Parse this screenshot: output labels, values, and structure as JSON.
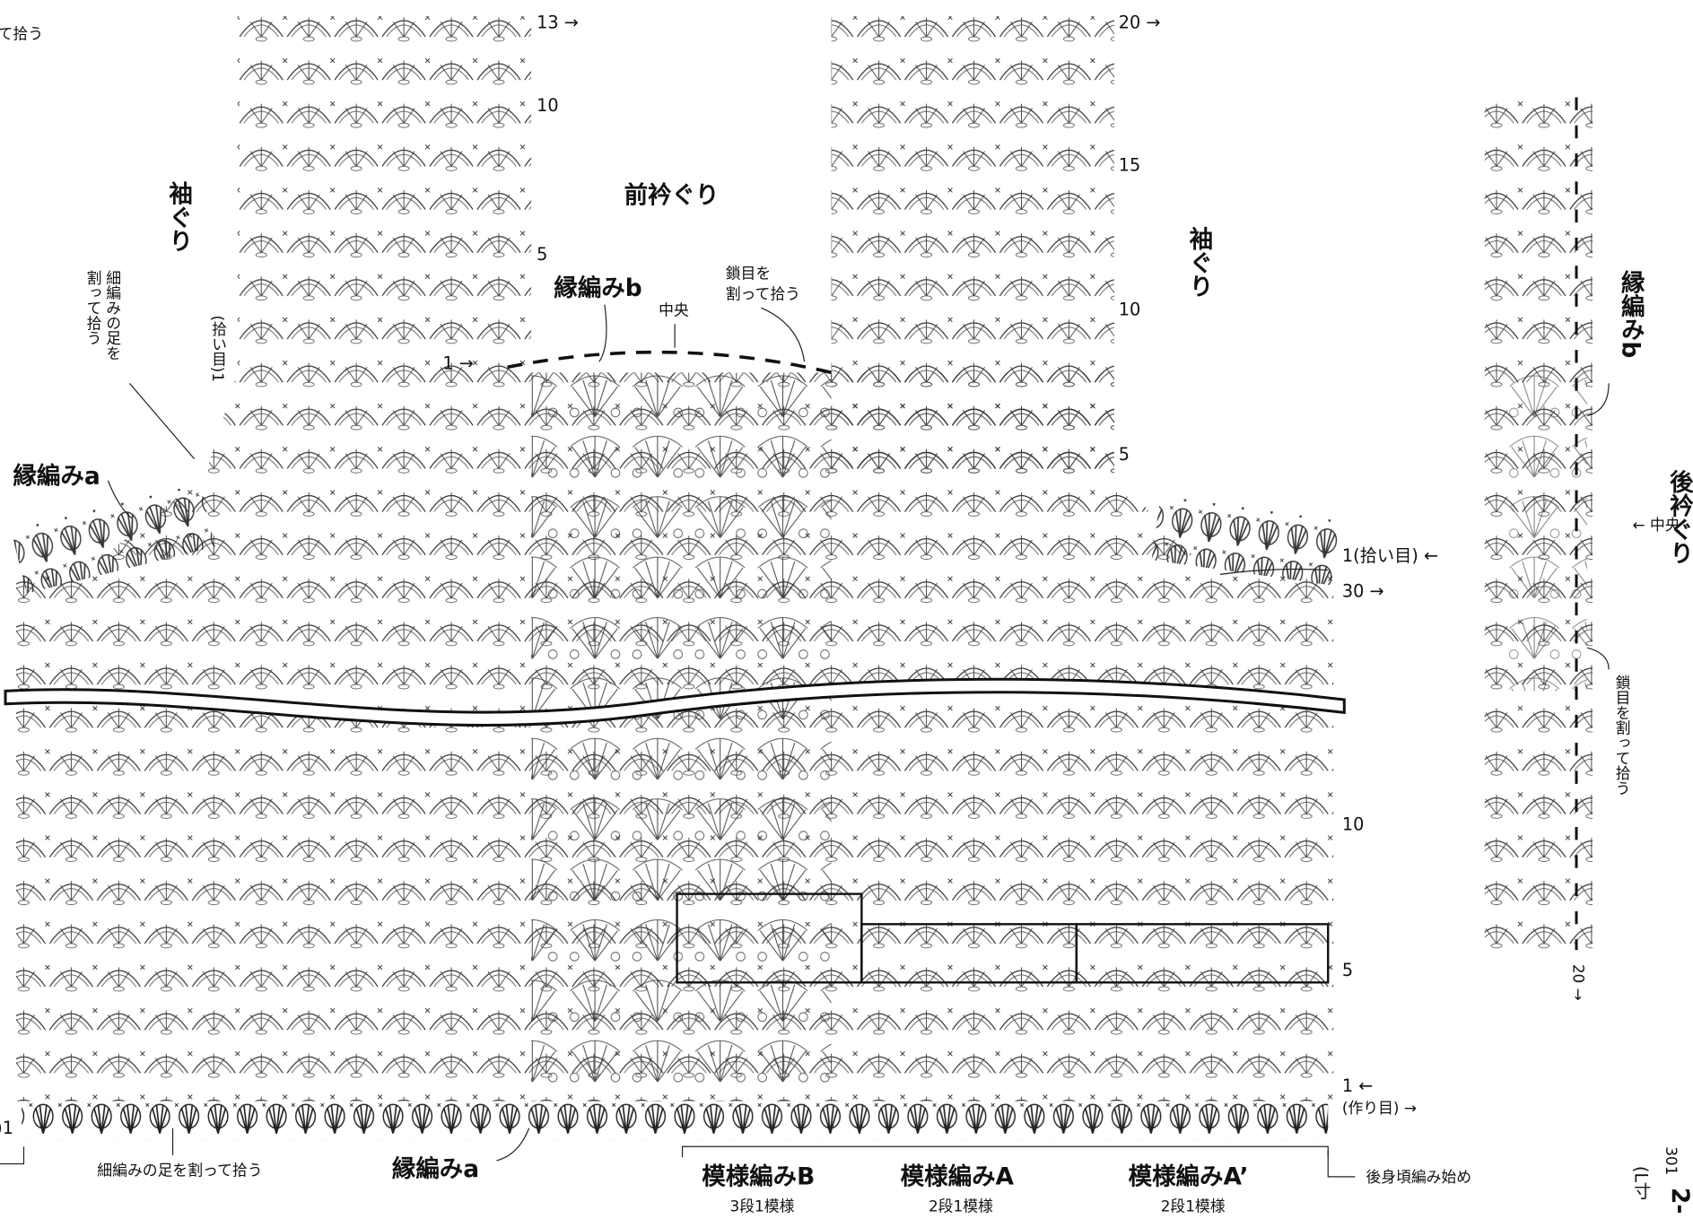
{
  "labels": {
    "top_left_cut": "て拾う",
    "left_panel_row_13": "13 →",
    "left_panel_row_10": "10",
    "left_panel_row_5": "5",
    "left_panel_row_1": "1 →",
    "right_panel_row_20": "20 →",
    "right_panel_row_15": "15",
    "right_panel_row_10": "10",
    "right_panel_row_5": "5",
    "left_armhole": "袖ぐり",
    "front_neckline": "前衿ぐり",
    "right_armhole": "袖ぐり",
    "split_sc_leg_1": "細編みの足を",
    "split_sc_leg_2": "割って拾う",
    "pickup_left": "(拾い目)1",
    "edging_b": "縁編みb",
    "split_chain_1": "鎖目を",
    "split_chain_2": "割って拾う",
    "center": "中央",
    "edging_a_left": "縁編みa",
    "pickup_right": "1(拾い目) ←",
    "body_row_30": "30 →",
    "body_row_10": "10",
    "body_row_5": "5",
    "body_row_1": "1 ←",
    "foundation": "(作り目) →",
    "left_edge_1": ")1",
    "split_sc_leg_bottom": "細編みの足を割って拾う",
    "edging_a_bottom": "縁編みa",
    "pattern_b": "模様編みB",
    "pattern_b_repeat": "3段1模様",
    "pattern_a": "模様編みA",
    "pattern_a_repeat": "2段1模様",
    "pattern_a2": "模様編みA’",
    "pattern_a2_repeat": "2段1模様",
    "back_start": "後身頃編み始め",
    "back_edging_b": "縁編みb",
    "back_neckline": "後衿ぐり",
    "back_center": "← 中央",
    "back_split_chain": "鎖目を割って拾う",
    "back_row_20": "20 →",
    "page_number": "301",
    "page_side_1": "2-",
    "page_side_2": "(L寸"
  }
}
